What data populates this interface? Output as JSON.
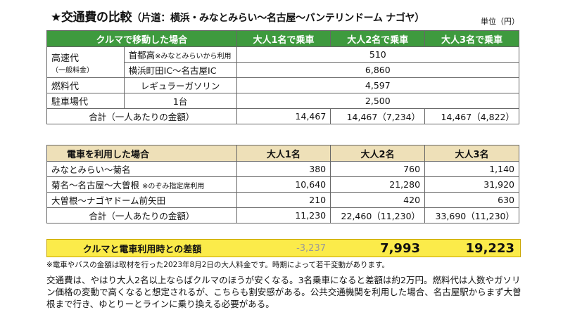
{
  "title": {
    "main": "★交通費の比較",
    "sub": "（片道：横浜・みなとみらい～名古屋～バンテリンドーム ナゴヤ）"
  },
  "unit": "単位（円）",
  "car": {
    "header": [
      "クルマで移動した場合",
      "大人1名で乗車",
      "大人2名で乗車",
      "大人3名で乗車"
    ],
    "highway_label": "高速代",
    "highway_sub": "（一般料金）",
    "shutoko": "首都高",
    "shutoko_note": "※みなとみらいから利用",
    "shutoko_val": "510",
    "tomei": "横浜町田IC～名古屋IC",
    "tomei_val": "6,860",
    "fuel_label": "燃料代",
    "fuel_type": "レギュラーガソリン",
    "fuel_val": "4,597",
    "parking_label": "駐車場代",
    "parking_type": "1台",
    "parking_val": "2,500",
    "total_label": "合計（一人あたりの金額）",
    "totals": [
      "14,467",
      "14,467（7,234）",
      "14,467（4,822）"
    ]
  },
  "train": {
    "header": [
      "電車を利用した場合",
      "大人1名",
      "大人2名",
      "大人3名"
    ],
    "rows": [
      {
        "label": "みなとみらい～菊名",
        "note": "",
        "values": [
          "380",
          "760",
          "1,140"
        ]
      },
      {
        "label": "菊名～名古屋～大曽根",
        "note": "※のぞみ指定席利用",
        "values": [
          "10,640",
          "21,280",
          "31,920"
        ]
      },
      {
        "label": "大曽根～ナゴヤドーム前矢田",
        "note": "",
        "values": [
          "210",
          "420",
          "630"
        ]
      }
    ],
    "total_label": "合計（一人あたりの金額）",
    "totals": [
      "11,230",
      "22,460（11,230）",
      "33,690（11,230）"
    ]
  },
  "diff": {
    "label": "クルマと電車利用時との差額",
    "values": [
      "-3,237",
      "7,993",
      "19,223"
    ]
  },
  "note": "※電車やバスの金額は取材を行った2023年8月2日の大人料金です。時期によって若干変動があります。",
  "paragraph": "交通費は、やはり大人2名以上ならばクルマのほうが安くなる。3名乗車になると差額は約2万円。燃料代は人数やガソリン価格の変動で高くなると想定されるが、こちらも割安感がある。公共交通機関を利用した場合、名古屋駅からまず大曽根まで行き、ゆとりーとラインに乗り換える必要がある。"
}
